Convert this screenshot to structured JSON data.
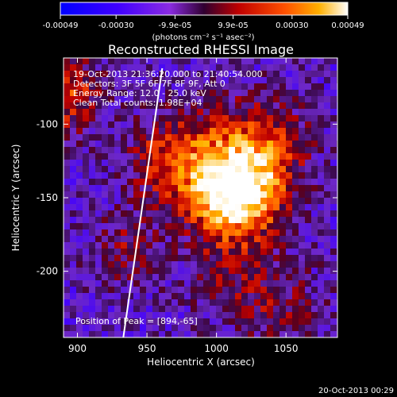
{
  "chart_data": {
    "type": "heatmap",
    "title": "Reconstructed RHESSI Image",
    "xlabel": "Heliocentric X (arcsec)",
    "ylabel": "Heliocentric Y (arcsec)",
    "xlim": [
      890,
      1087
    ],
    "ylim": [
      -245,
      -55
    ],
    "x_ticks": [
      "900",
      "950",
      "1000",
      "1050"
    ],
    "x_tick_values": [
      900,
      950,
      1000,
      1050
    ],
    "y_ticks": [
      "-100",
      "-150",
      "-200"
    ],
    "y_tick_values": [
      -100,
      -150,
      -200
    ],
    "annotations": [
      "19-Oct-2013 21:36:20.000 to 21:40:54.000",
      "Detectors: 3F 5F 6F 7F 8F 9F, Att 0",
      "Energy Range: 12.0 - 25.0 keV",
      "Clean     Total counts: 1.98E+04"
    ],
    "peak_label": "Position of Peak = [894,-65]",
    "colorbar": {
      "range": [
        -0.00049,
        0.00049
      ],
      "tick_labels": [
        "-0.00049",
        "-0.00030",
        "-9.9e-05",
        "9.9e-05",
        "0.00030",
        "0.00049"
      ],
      "tick_values": [
        -0.00049,
        -0.0003,
        -9.9e-05,
        9.9e-05,
        0.0003,
        0.00049
      ],
      "units_label": "(photons cm⁻² s⁻¹ asec⁻²)"
    },
    "limb_line": [
      [
        933,
        -245
      ],
      [
        961,
        -62
      ]
    ],
    "grid": false,
    "legend": "none"
  },
  "timestamp": "20-Oct-2013 00:29",
  "colors": {
    "background": "#000000",
    "text": "#ffffff",
    "limb": "#ffffff"
  }
}
